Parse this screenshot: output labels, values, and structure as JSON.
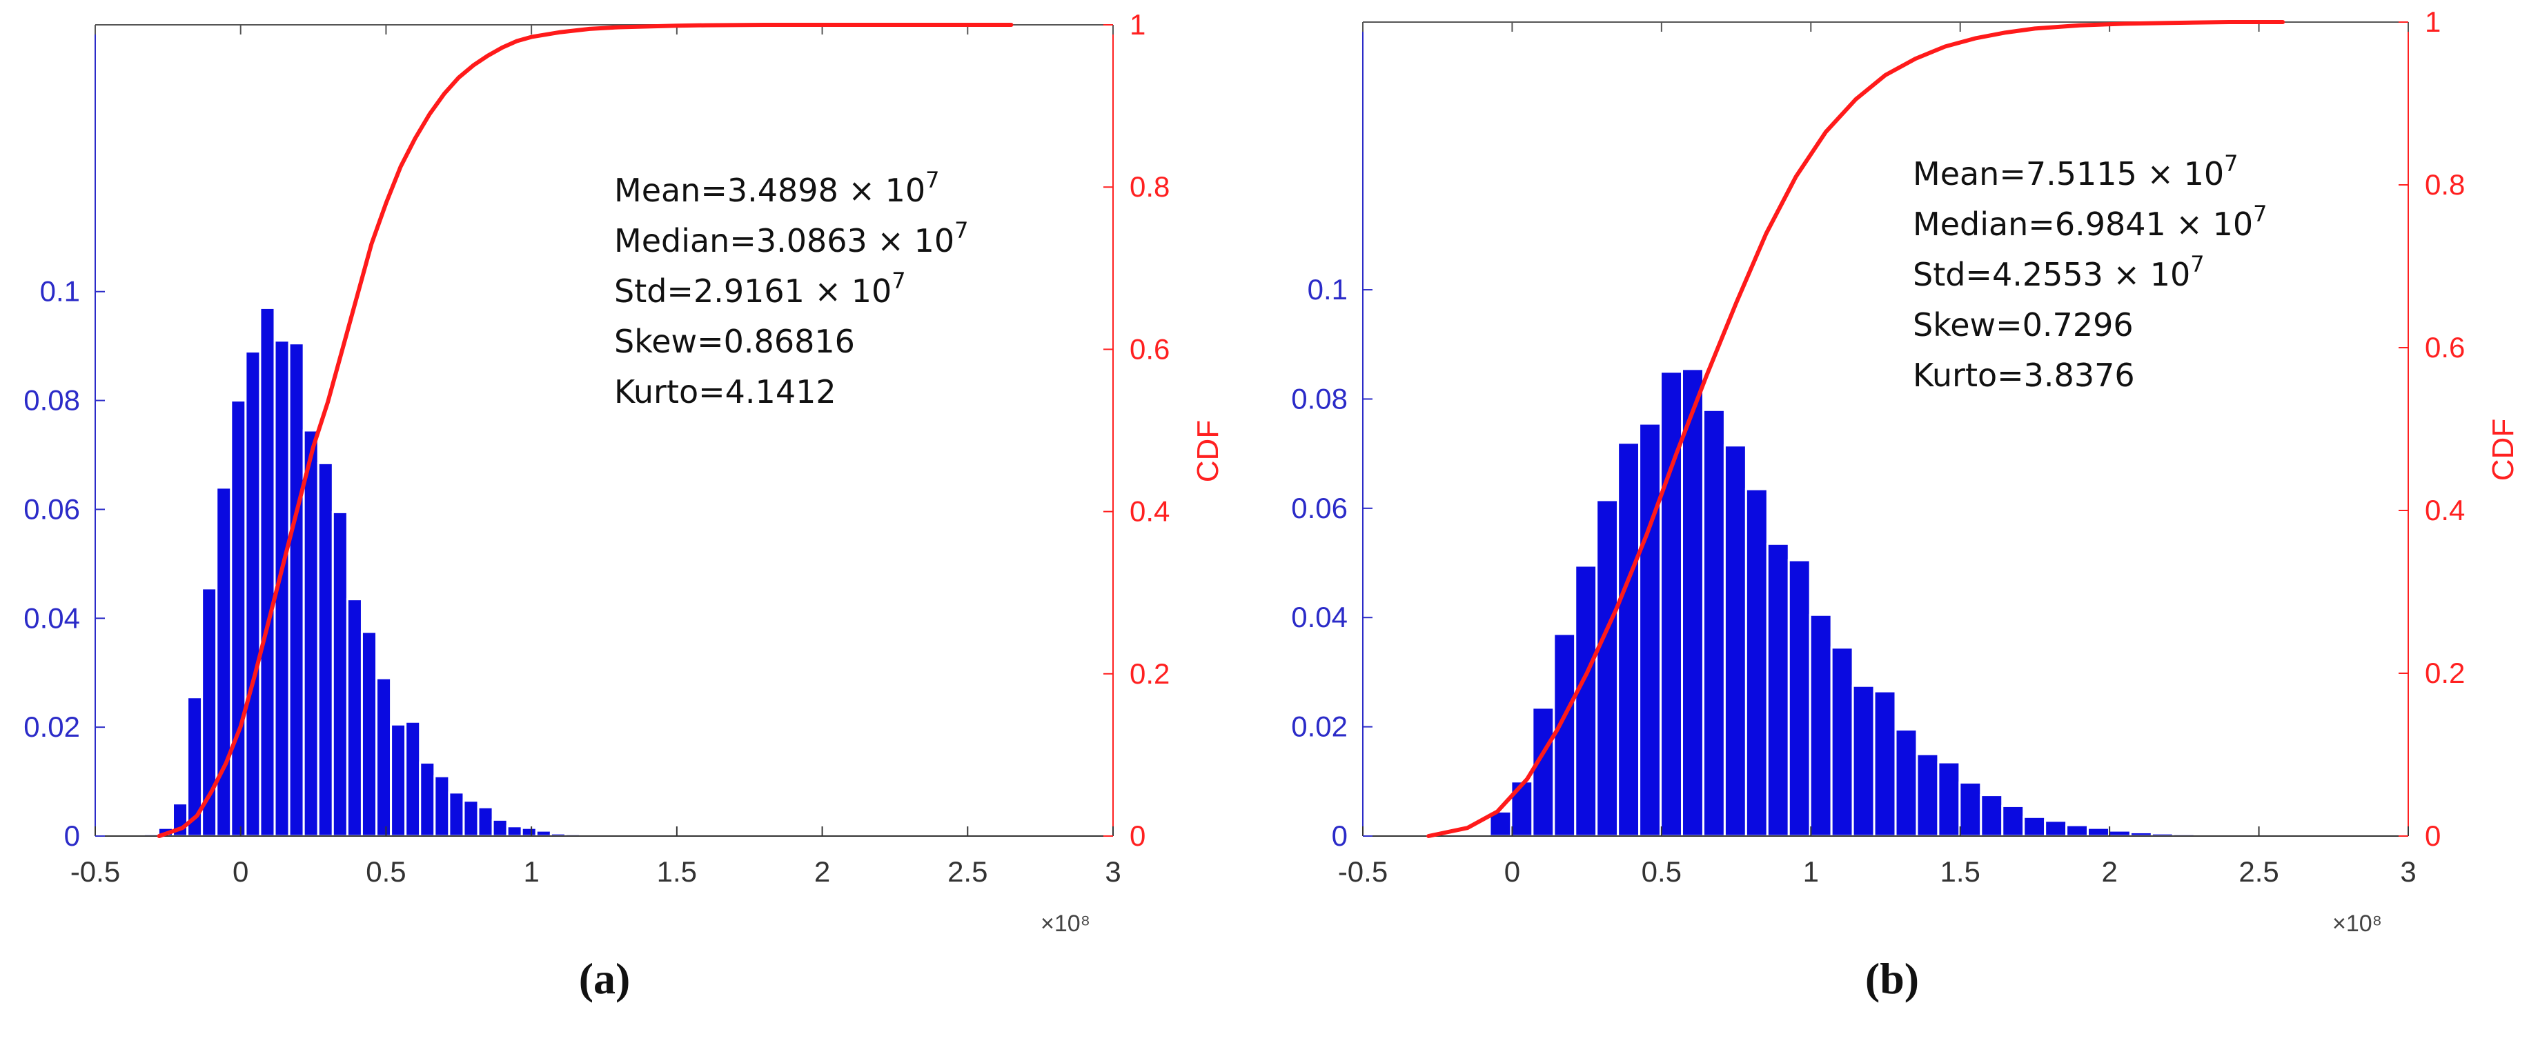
{
  "chart_data": [
    {
      "type": "bar",
      "panel_label": "(a)",
      "x_exponent_label": "×10⁸",
      "xlim": [
        -0.5,
        3
      ],
      "xticks": [
        -0.5,
        0,
        0.5,
        1,
        1.5,
        2,
        2.5,
        3
      ],
      "left_axis": {
        "ylim": [
          0,
          0.149
        ],
        "ticks": [
          0,
          0.02,
          0.04,
          0.06,
          0.08,
          0.1
        ],
        "color": "#2b2bc8"
      },
      "right_axis": {
        "label": "CDF",
        "ylim": [
          0,
          1
        ],
        "ticks": [
          0,
          0.2,
          0.4,
          0.6,
          0.8,
          1
        ],
        "color": "#ff2020"
      },
      "bar_color": "#0a0ae0",
      "curve_color": "#ff1a1a",
      "bins": {
        "start": -0.333,
        "width": 0.05,
        "values": [
          0.0004,
          0.0015,
          0.006,
          0.0255,
          0.0455,
          0.064,
          0.08,
          0.089,
          0.097,
          0.091,
          0.0905,
          0.0745,
          0.0685,
          0.0595,
          0.0435,
          0.0375,
          0.029,
          0.0205,
          0.021,
          0.0135,
          0.011,
          0.008,
          0.0065,
          0.0053,
          0.003,
          0.0018,
          0.0015,
          0.001,
          0.0005,
          0.0004,
          0.0003,
          0.0002,
          0.0002,
          0.0001,
          0.0001,
          0.0001,
          0.0001,
          0.0001,
          0.0001,
          0.0001,
          0.0001,
          0.0001
        ]
      },
      "cdf": {
        "x": [
          -0.28,
          -0.2,
          -0.15,
          -0.1,
          -0.05,
          0,
          0.05,
          0.1,
          0.15,
          0.2,
          0.25,
          0.3,
          0.35,
          0.4,
          0.45,
          0.5,
          0.55,
          0.6,
          0.65,
          0.7,
          0.75,
          0.8,
          0.85,
          0.9,
          0.95,
          1.0,
          1.1,
          1.2,
          1.3,
          1.4,
          1.5,
          1.6,
          1.8,
          2.0,
          2.2,
          2.4,
          2.65
        ],
        "y": [
          0.0,
          0.01,
          0.025,
          0.055,
          0.09,
          0.135,
          0.2,
          0.27,
          0.34,
          0.41,
          0.48,
          0.535,
          0.6,
          0.665,
          0.73,
          0.78,
          0.825,
          0.86,
          0.89,
          0.915,
          0.935,
          0.95,
          0.962,
          0.972,
          0.98,
          0.985,
          0.991,
          0.995,
          0.997,
          0.998,
          0.999,
          0.9995,
          1.0,
          1.0,
          1.0,
          1.0,
          1.0
        ]
      },
      "stats": [
        {
          "label": "Mean=3.4898",
          "times": "×",
          "base": "10",
          "exp": "7"
        },
        {
          "label": "Median=3.0863",
          "times": "×",
          "base": "10",
          "exp": "7"
        },
        {
          "label": "Std=2.9161",
          "times": "×",
          "base": "10",
          "exp": "7"
        },
        {
          "label": "Skew=0.86816"
        },
        {
          "label": "Kurto=4.1412"
        }
      ]
    },
    {
      "type": "bar",
      "panel_label": "(b)",
      "x_exponent_label": "×10⁸",
      "xlim": [
        -0.5,
        3
      ],
      "xticks": [
        -0.5,
        0,
        0.5,
        1,
        1.5,
        2,
        2.5,
        3
      ],
      "left_axis": {
        "ylim": [
          0,
          0.149
        ],
        "ticks": [
          0,
          0.02,
          0.04,
          0.06,
          0.08,
          0.1
        ],
        "color": "#2b2bc8"
      },
      "right_axis": {
        "label": "CDF",
        "ylim": [
          0,
          1
        ],
        "ticks": [
          0,
          0.2,
          0.4,
          0.6,
          0.8,
          1
        ],
        "color": "#ff2020"
      },
      "bar_color": "#0a0ae0",
      "curve_color": "#ff1a1a",
      "bins": {
        "start": -0.075,
        "width": 0.0715,
        "values": [
          0.0045,
          0.01,
          0.0235,
          0.037,
          0.0495,
          0.0615,
          0.072,
          0.0755,
          0.085,
          0.0855,
          0.078,
          0.0715,
          0.0635,
          0.0535,
          0.0505,
          0.0405,
          0.0345,
          0.0275,
          0.0265,
          0.0195,
          0.015,
          0.0135,
          0.0098,
          0.0075,
          0.0055,
          0.0035,
          0.0028,
          0.002,
          0.0015,
          0.001,
          0.0007,
          0.0005,
          0.0004,
          0.0003,
          0.0002,
          0.0002,
          0.0001,
          0.0001,
          0.0001,
          0.0001,
          0.0001
        ]
      },
      "cdf": {
        "x": [
          -0.28,
          -0.15,
          -0.05,
          0.05,
          0.15,
          0.25,
          0.35,
          0.45,
          0.55,
          0.65,
          0.75,
          0.85,
          0.95,
          1.05,
          1.15,
          1.25,
          1.35,
          1.45,
          1.55,
          1.65,
          1.75,
          1.9,
          2.05,
          2.2,
          2.4,
          2.58
        ],
        "y": [
          0.0,
          0.01,
          0.03,
          0.07,
          0.13,
          0.2,
          0.28,
          0.37,
          0.47,
          0.565,
          0.655,
          0.74,
          0.81,
          0.865,
          0.905,
          0.935,
          0.955,
          0.97,
          0.98,
          0.987,
          0.992,
          0.996,
          0.998,
          0.999,
          1.0,
          1.0
        ]
      },
      "stats": [
        {
          "label": "Mean=7.5115",
          "times": "×",
          "base": "10",
          "exp": "7"
        },
        {
          "label": "Median=6.9841",
          "times": "×",
          "base": "10",
          "exp": "7"
        },
        {
          "label": "Std=4.2553",
          "times": "×",
          "base": "10",
          "exp": "7"
        },
        {
          "label": "Skew=0.7296"
        },
        {
          "label": "Kurto=3.8376"
        }
      ]
    }
  ]
}
